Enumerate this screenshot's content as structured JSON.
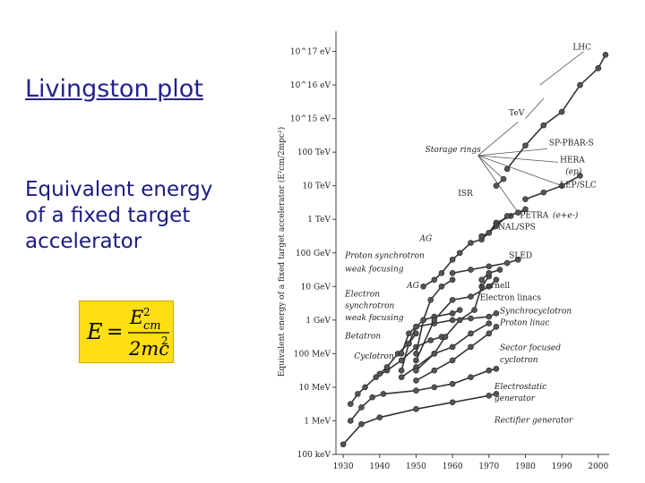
{
  "slide": {
    "title": "Livingston plot",
    "body_lines": [
      "Equivalent energy",
      "of a fixed target",
      "accelerator"
    ],
    "formula": {
      "lhs": "E",
      "equals": "=",
      "numerator_base": "E",
      "numerator_sub": "cm",
      "numerator_sup": "2",
      "denominator": "2mc",
      "denominator_sup": "2"
    }
  },
  "chart_data": {
    "type": "line",
    "title": "",
    "xlabel": "",
    "ylabel": "Equivalent energy of a fixed target accelerator (E²cm/2mpc²)",
    "x_ticks": [
      "1930",
      "1940",
      "1950",
      "1960",
      "1970",
      "1980",
      "1990",
      "2000"
    ],
    "xlim": [
      1928,
      2003
    ],
    "y_scale": "log10 eV",
    "y_ticks": [
      "100 keV",
      "1 MeV",
      "10 MeV",
      "100 MeV",
      "1 GeV",
      "10 GeV",
      "100 GeV",
      "1 TeV",
      "10 TeV",
      "100 TeV",
      "10^15 eV",
      "10^16 eV",
      "10^17 eV"
    ],
    "y_tick_exponents": [
      5,
      6,
      7,
      8,
      9,
      10,
      11,
      12,
      13,
      14,
      15,
      16,
      17
    ],
    "ylim": [
      5,
      17.6
    ],
    "grid": false,
    "colors": {
      "line": "#333333",
      "marker": "#555555",
      "background": "#ffffff"
    },
    "series": [
      {
        "name": "Rectifier generator",
        "points": [
          [
            1930,
            5.3
          ],
          [
            1935,
            5.9
          ],
          [
            1940,
            6.1
          ],
          [
            1950,
            6.35
          ],
          [
            1960,
            6.55
          ],
          [
            1970,
            6.75
          ],
          [
            1972,
            6.8
          ]
        ]
      },
      {
        "name": "Electrostatic generator",
        "points": [
          [
            1932,
            6.0
          ],
          [
            1935,
            6.4
          ],
          [
            1938,
            6.7
          ],
          [
            1941,
            6.8
          ],
          [
            1950,
            6.9
          ],
          [
            1955,
            7.0
          ],
          [
            1960,
            7.1
          ],
          [
            1965,
            7.3
          ],
          [
            1970,
            7.5
          ],
          [
            1972,
            7.55
          ]
        ]
      },
      {
        "name": "Cyclotron",
        "points": [
          [
            1932,
            6.5
          ],
          [
            1934,
            6.8
          ],
          [
            1936,
            7.0
          ],
          [
            1939,
            7.3
          ],
          [
            1942,
            7.5
          ],
          [
            1946,
            7.8
          ],
          [
            1950,
            8.2
          ],
          [
            1954,
            8.4
          ],
          [
            1957,
            8.5
          ]
        ]
      },
      {
        "name": "Betatron",
        "points": [
          [
            1940,
            7.4
          ],
          [
            1942,
            7.6
          ],
          [
            1945,
            8.0
          ],
          [
            1948,
            8.3
          ],
          [
            1950,
            8.6
          ]
        ]
      },
      {
        "name": "Sector focused cyclotron",
        "points": [
          [
            1950,
            7.2
          ],
          [
            1955,
            7.5
          ],
          [
            1960,
            7.8
          ],
          [
            1965,
            8.2
          ],
          [
            1970,
            8.6
          ],
          [
            1972,
            8.8
          ]
        ]
      },
      {
        "name": "Electron synchrotron weak focusing",
        "points": [
          [
            1946,
            7.5
          ],
          [
            1948,
            8.3
          ],
          [
            1950,
            8.8
          ],
          [
            1952,
            9.0
          ],
          [
            1955,
            9.1
          ],
          [
            1960,
            9.2
          ],
          [
            1962,
            9.3
          ]
        ]
      },
      {
        "name": "Synchrocyclotron",
        "points": [
          [
            1946,
            8.0
          ],
          [
            1948,
            8.6
          ],
          [
            1950,
            8.8
          ],
          [
            1955,
            8.9
          ],
          [
            1960,
            9.0
          ],
          [
            1965,
            9.05
          ],
          [
            1970,
            9.1
          ],
          [
            1972,
            9.2
          ]
        ]
      },
      {
        "name": "Proton linac",
        "points": [
          [
            1946,
            7.3
          ],
          [
            1950,
            7.6
          ],
          [
            1955,
            8.0
          ],
          [
            1960,
            8.2
          ],
          [
            1965,
            8.6
          ],
          [
            1970,
            8.9
          ]
        ]
      },
      {
        "name": "Electron linacs",
        "points": [
          [
            1950,
            7.5
          ],
          [
            1955,
            8.0
          ],
          [
            1958,
            8.5
          ],
          [
            1962,
            9.0
          ],
          [
            1966,
            9.3
          ],
          [
            1968,
            10.0
          ],
          [
            1970,
            10.3
          ]
        ]
      },
      {
        "name": "Proton synchrotron weak focusing",
        "points": [
          [
            1950,
            8.0
          ],
          [
            1952,
            9.0
          ],
          [
            1954,
            9.6
          ],
          [
            1957,
            10.0
          ],
          [
            1960,
            10.2
          ]
        ]
      },
      {
        "name": "Electron synchrotron AG",
        "points": [
          [
            1950,
            7.8
          ],
          [
            1955,
            9.0
          ],
          [
            1960,
            9.6
          ],
          [
            1965,
            9.7
          ],
          [
            1970,
            10.0
          ],
          [
            1972,
            10.2
          ]
        ]
      },
      {
        "name": "SLED",
        "points": [
          [
            1960,
            10.4
          ],
          [
            1965,
            10.5
          ],
          [
            1970,
            10.6
          ],
          [
            1975,
            10.7
          ],
          [
            1978,
            10.8
          ]
        ]
      },
      {
        "name": "Cornell",
        "points": [
          [
            1968,
            10.2
          ],
          [
            1970,
            10.4
          ],
          [
            1973,
            10.5
          ]
        ]
      },
      {
        "name": "AG / FNAL/SPS",
        "points": [
          [
            1952,
            10.0
          ],
          [
            1955,
            10.2
          ],
          [
            1957,
            10.4
          ],
          [
            1960,
            10.8
          ],
          [
            1962,
            11.0
          ],
          [
            1965,
            11.3
          ],
          [
            1968,
            11.4
          ],
          [
            1970,
            11.6
          ],
          [
            1972,
            11.9
          ],
          [
            1976,
            12.1
          ]
        ]
      },
      {
        "name": "PETRA (e+e-)",
        "points": [
          [
            1968,
            11.5
          ],
          [
            1970,
            11.6
          ],
          [
            1972,
            11.8
          ],
          [
            1975,
            12.1
          ],
          [
            1978,
            12.2
          ],
          [
            1980,
            12.3
          ]
        ]
      },
      {
        "name": "LEP/SLC",
        "points": [
          [
            1980,
            12.6
          ],
          [
            1985,
            12.8
          ],
          [
            1990,
            13.0
          ],
          [
            1995,
            13.3
          ]
        ]
      },
      {
        "name": "TeV / SP-PBAR-S / HERA (ep)",
        "points": [
          [
            1975,
            13.5
          ],
          [
            1980,
            14.2
          ],
          [
            1985,
            14.8
          ],
          [
            1990,
            15.2
          ],
          [
            1995,
            16.0
          ],
          [
            2000,
            16.5
          ]
        ]
      },
      {
        "name": "ISR",
        "points": [
          [
            1972,
            13.0
          ],
          [
            1974,
            13.2
          ]
        ]
      },
      {
        "name": "LHC",
        "points": [
          [
            2000,
            16.5
          ],
          [
            2002,
            16.9
          ]
        ]
      }
    ],
    "annotations": [
      {
        "text": "LHC",
        "x": 1993,
        "y": 17.05,
        "style": "normal"
      },
      {
        "text": "TeV",
        "x": 1975.5,
        "y": 15.1,
        "style": "normal"
      },
      {
        "text": "SP-PBAR-S",
        "x": 1986.5,
        "y": 14.2,
        "style": "normal"
      },
      {
        "text": "Storage rings",
        "x": 1952.5,
        "y": 14.0,
        "style": "italic"
      },
      {
        "text": "HERA",
        "x": 1989.5,
        "y": 13.7,
        "style": "normal"
      },
      {
        "text": "(ep)",
        "x": 1991,
        "y": 13.35,
        "style": "italic"
      },
      {
        "text": "LEP/SLC",
        "x": 1989.5,
        "y": 12.95,
        "style": "normal"
      },
      {
        "text": "ISR",
        "x": 1961.5,
        "y": 12.7,
        "style": "normal"
      },
      {
        "text": "PETRA",
        "x": 1978.5,
        "y": 12.05,
        "style": "normal"
      },
      {
        "text": "(e+e-)",
        "x": 1987.5,
        "y": 12.05,
        "style": "italic"
      },
      {
        "text": "FNAL/SPS",
        "x": 1971,
        "y": 11.7,
        "style": "normal"
      },
      {
        "text": "AG",
        "x": 1951,
        "y": 11.35,
        "style": "italic"
      },
      {
        "text": "Proton synchrotron",
        "x": 1930.5,
        "y": 10.85,
        "style": "italic"
      },
      {
        "text": "weak focusing",
        "x": 1930.5,
        "y": 10.45,
        "style": "italic"
      },
      {
        "text": "SLED",
        "x": 1975.5,
        "y": 10.85,
        "style": "normal"
      },
      {
        "text": "AG",
        "x": 1947.5,
        "y": 9.95,
        "style": "italic"
      },
      {
        "text": "Cornell",
        "x": 1967.5,
        "y": 9.95,
        "style": "normal"
      },
      {
        "text": "Electron",
        "x": 1930.5,
        "y": 9.7,
        "style": "italic"
      },
      {
        "text": "Electron linacs",
        "x": 1967.5,
        "y": 9.6,
        "style": "normal"
      },
      {
        "text": "synchrotron",
        "x": 1930.5,
        "y": 9.35,
        "style": "italic"
      },
      {
        "text": "Synchrocyclotron",
        "x": 1973,
        "y": 9.2,
        "style": "italic"
      },
      {
        "text": "weak focusing",
        "x": 1930.5,
        "y": 9.0,
        "style": "italic"
      },
      {
        "text": "Proton linac",
        "x": 1973,
        "y": 8.85,
        "style": "italic"
      },
      {
        "text": "Betatron",
        "x": 1930.5,
        "y": 8.45,
        "style": "italic"
      },
      {
        "text": "Sector focused",
        "x": 1973,
        "y": 8.1,
        "style": "italic"
      },
      {
        "text": "Cyclotron",
        "x": 1933,
        "y": 7.85,
        "style": "italic"
      },
      {
        "text": "cyclotron",
        "x": 1973,
        "y": 7.75,
        "style": "italic"
      },
      {
        "text": "Electrostatic",
        "x": 1971.5,
        "y": 6.95,
        "style": "italic"
      },
      {
        "text": "generator",
        "x": 1971.5,
        "y": 6.6,
        "style": "italic"
      },
      {
        "text": "Rectifier generator",
        "x": 1971.5,
        "y": 5.95,
        "style": "italic"
      }
    ],
    "leader_lines": [
      {
        "from": [
          1967,
          13.9
        ],
        "to": [
          1978,
          14.9
        ]
      },
      {
        "from": [
          1967,
          13.9
        ],
        "to": [
          1986,
          14.1
        ]
      },
      {
        "from": [
          1967,
          13.9
        ],
        "to": [
          1989,
          13.7
        ]
      },
      {
        "from": [
          1967,
          13.9
        ],
        "to": [
          1978,
          12.2
        ]
      },
      {
        "from": [
          1967,
          13.9
        ],
        "to": [
          1974,
          13.2
        ]
      },
      {
        "from": [
          1967,
          13.9
        ],
        "to": [
          1990,
          13.0
        ]
      },
      {
        "from": [
          1984,
          16.0
        ],
        "to": [
          1996,
          17.0
        ]
      },
      {
        "from": [
          1980,
          15.0
        ],
        "to": [
          1985,
          15.6
        ]
      }
    ]
  }
}
